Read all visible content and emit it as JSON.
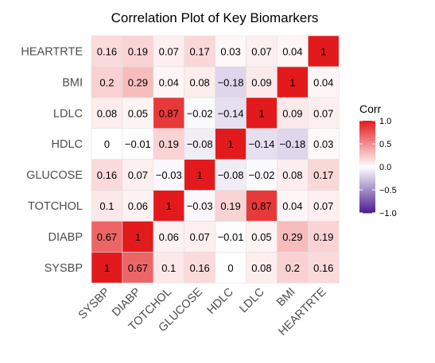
{
  "chart_data": {
    "type": "heatmap",
    "title": "Correlation Plot of Key Biomarkers",
    "xlabel": "",
    "ylabel": "",
    "x_categories": [
      "SYSBP",
      "DIABP",
      "TOTCHOL",
      "GLUCOSE",
      "HDLC",
      "LDLC",
      "BMI",
      "HEARTRTE"
    ],
    "y_categories_bottom_to_top": [
      "SYSBP",
      "DIABP",
      "TOTCHOL",
      "GLUCOSE",
      "HDLC",
      "LDLC",
      "BMI",
      "HEARTRTE"
    ],
    "values": [
      [
        1,
        0.67,
        0.1,
        0.16,
        0,
        0.08,
        0.2,
        0.16
      ],
      [
        0.67,
        1,
        0.06,
        0.07,
        -0.01,
        0.05,
        0.29,
        0.19
      ],
      [
        0.1,
        0.06,
        1,
        -0.03,
        0.19,
        0.87,
        0.04,
        0.07
      ],
      [
        0.16,
        0.07,
        -0.03,
        1,
        -0.08,
        -0.02,
        0.08,
        0.17
      ],
      [
        0,
        -0.01,
        0.19,
        -0.08,
        1,
        -0.14,
        -0.18,
        0.03
      ],
      [
        0.08,
        0.05,
        0.87,
        -0.02,
        -0.14,
        1,
        0.09,
        0.07
      ],
      [
        0.2,
        0.29,
        0.04,
        0.08,
        -0.18,
        0.09,
        1,
        0.04
      ],
      [
        0.16,
        0.19,
        0.07,
        0.17,
        0.03,
        0.07,
        0.04,
        1
      ]
    ],
    "value_labels": [
      [
        "1",
        "0.67",
        "0.1",
        "0.16",
        "0",
        "0.08",
        "0.2",
        "0.16"
      ],
      [
        "0.67",
        "1",
        "0.06",
        "0.07",
        "−0.01",
        "0.05",
        "0.29",
        "0.19"
      ],
      [
        "0.1",
        "0.06",
        "1",
        "−0.03",
        "0.19",
        "0.87",
        "0.04",
        "0.07"
      ],
      [
        "0.16",
        "0.07",
        "−0.03",
        "1",
        "−0.08",
        "−0.02",
        "0.08",
        "0.17"
      ],
      [
        "0",
        "−0.01",
        "0.19",
        "−0.08",
        "1",
        "−0.14",
        "−0.18",
        "0.03"
      ],
      [
        "0.08",
        "0.05",
        "0.87",
        "−0.02",
        "−0.14",
        "1",
        "0.09",
        "0.07"
      ],
      [
        "0.2",
        "0.29",
        "0.04",
        "0.08",
        "−0.18",
        "0.09",
        "1",
        "0.04"
      ],
      [
        "0.16",
        "0.19",
        "0.07",
        "0.17",
        "0.03",
        "0.07",
        "0.04",
        "1"
      ]
    ],
    "legend": {
      "title": "Corr",
      "range": [
        -1,
        1
      ],
      "tick_values": [
        1,
        0.5,
        0,
        -0.5,
        -1
      ],
      "ticks": [
        "1.0",
        "0.5",
        "0.0",
        "−0.5",
        "−1.0"
      ],
      "placement": "right"
    },
    "color_scale": {
      "low": "#4B1D91",
      "mid": "#FFFFFF",
      "high": "#E31A1C"
    },
    "grid": false
  }
}
